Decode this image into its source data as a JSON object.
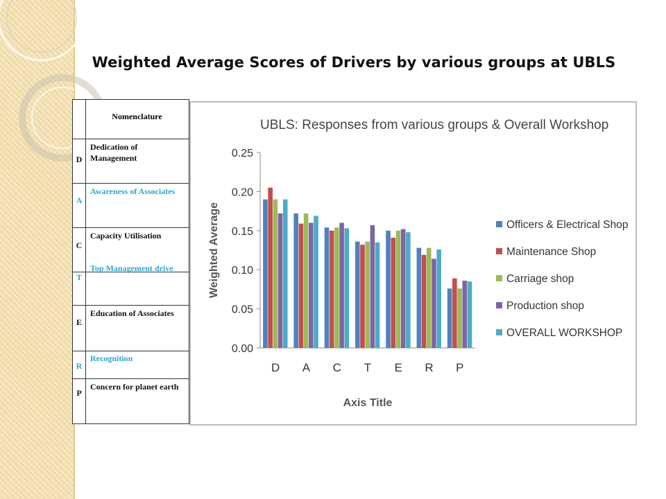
{
  "slide_title": "Weighted Average Scores of Drivers by various groups at UBLS",
  "nomenclature": {
    "header": "Nomenclature",
    "rows": [
      {
        "code": "D",
        "label": "Dedication of Management",
        "color": "#111111"
      },
      {
        "code": "A",
        "label": "Awareness of Associates",
        "color": "#29a7d3"
      },
      {
        "code": "C",
        "label": "Capacity Utilisation",
        "color": "#111111"
      },
      {
        "code": "T",
        "label": "Top Management drive",
        "color": "#29a7d3"
      },
      {
        "code": "E",
        "label": "Education of Associates",
        "color": "#111111"
      },
      {
        "code": "R",
        "label": "Recognition",
        "color": "#29a7d3"
      },
      {
        "code": "P",
        "label": "Concern for planet earth",
        "color": "#111111"
      }
    ]
  },
  "chart_data": {
    "type": "bar",
    "title": "UBLS: Responses from various groups & Overall Workshop",
    "xlabel": "Axis Title",
    "ylabel": "Weighted Average",
    "ylim": [
      0,
      0.25
    ],
    "yticks": [
      "0.00",
      "0.05",
      "0.10",
      "0.15",
      "0.20",
      "0.25"
    ],
    "grid": false,
    "legend": "right",
    "categories": [
      "D",
      "A",
      "C",
      "T",
      "E",
      "R",
      "P"
    ],
    "series": [
      {
        "name": "Officers & Electrical Shop",
        "color": "#4f81bd",
        "values": [
          0.19,
          0.172,
          0.154,
          0.136,
          0.15,
          0.128,
          0.076
        ]
      },
      {
        "name": "Maintenance Shop",
        "color": "#c0504d",
        "values": [
          0.205,
          0.159,
          0.15,
          0.132,
          0.141,
          0.119,
          0.089
        ]
      },
      {
        "name": "Carriage shop",
        "color": "#9bbb59",
        "values": [
          0.19,
          0.172,
          0.154,
          0.136,
          0.15,
          0.128,
          0.076
        ]
      },
      {
        "name": "Production shop",
        "color": "#8064a2",
        "values": [
          0.172,
          0.16,
          0.16,
          0.157,
          0.152,
          0.114,
          0.086
        ]
      },
      {
        "name": "OVERALL WORKSHOP",
        "color": "#4bacc6",
        "values": [
          0.19,
          0.169,
          0.153,
          0.135,
          0.148,
          0.126,
          0.085
        ]
      }
    ]
  }
}
